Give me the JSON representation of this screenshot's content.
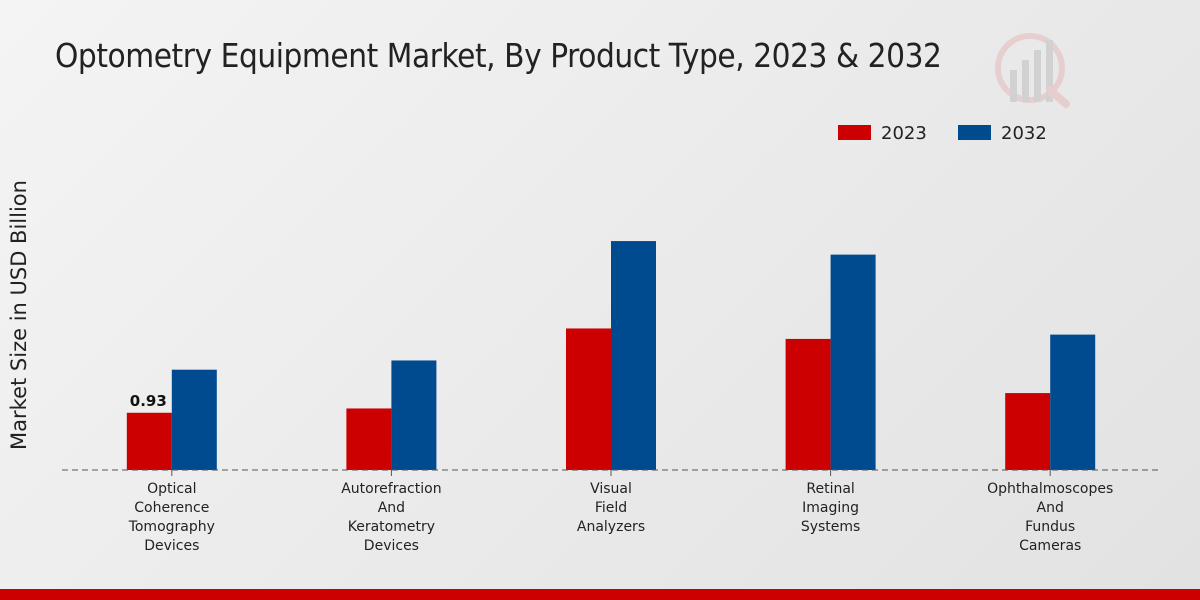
{
  "chart_data": {
    "type": "bar",
    "title": "Optometry Equipment Market, By Product Type, 2023 & 2032",
    "ylabel": "Market Size in USD Billion",
    "xlabel": "",
    "categories": [
      [
        "Optical",
        "Coherence",
        "Tomography",
        "Devices"
      ],
      [
        "Autorefraction",
        "And",
        "Keratometry",
        "Devices"
      ],
      [
        "Visual",
        "Field",
        "Analyzers"
      ],
      [
        "Retinal",
        "Imaging",
        "Systems"
      ],
      [
        "Ophthalmoscopes",
        "And",
        "Fundus",
        "Cameras"
      ]
    ],
    "series": [
      {
        "name": "2023",
        "color": "#cc0000",
        "values": [
          0.93,
          1.0,
          2.3,
          2.13,
          1.25
        ]
      },
      {
        "name": "2032",
        "color": "#004a8f",
        "values": [
          1.63,
          1.78,
          3.72,
          3.5,
          2.2
        ]
      }
    ],
    "data_labels": [
      {
        "series": 0,
        "index": 0,
        "text": "0.93"
      }
    ],
    "ylim": [
      0,
      5.2
    ],
    "legend_position": "top-right",
    "grid": false
  }
}
